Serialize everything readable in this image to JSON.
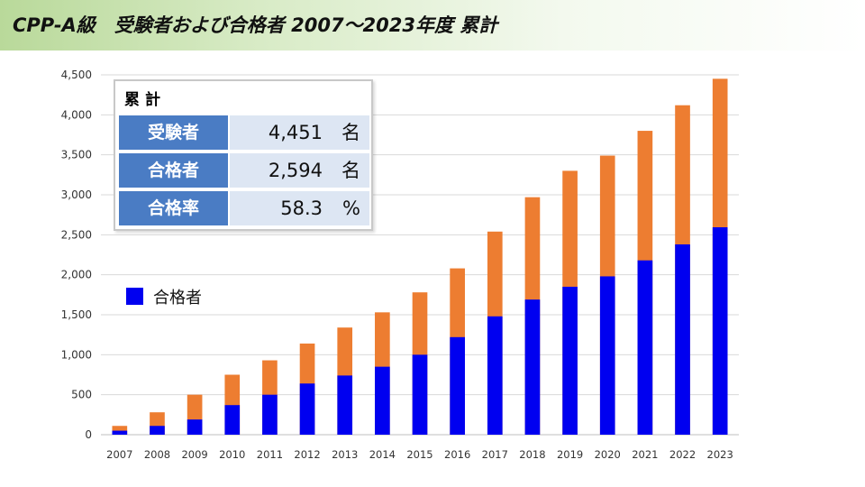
{
  "title": "CPP-A級　受験者および合格者  2007～2023年度  累計",
  "colors": {
    "passed": "#0000f0",
    "examinees": "#ed7d31",
    "label_bg": "#4a7cc4",
    "value_bg": "#dde6f3"
  },
  "summary": {
    "title": "累計",
    "rows": [
      {
        "label": "受験者",
        "value": "4,451",
        "unit": "名"
      },
      {
        "label": "合格者",
        "value": "2,594",
        "unit": "名"
      },
      {
        "label": "合格率",
        "value": "58.3",
        "unit": "%"
      }
    ]
  },
  "legend": {
    "label": "合格者"
  },
  "chart_data": {
    "type": "bar",
    "title": "",
    "xlabel": "",
    "ylabel": "",
    "ylim": [
      0,
      4500
    ],
    "yticks": [
      0,
      500,
      1000,
      1500,
      2000,
      2500,
      3000,
      3500,
      4000,
      4500
    ],
    "ytick_labels": [
      "0",
      "500",
      "1,000",
      "1,500",
      "2,000",
      "2,500",
      "3,000",
      "3,500",
      "4,000",
      "4,500"
    ],
    "grid": true,
    "categories": [
      "2007",
      "2008",
      "2009",
      "2010",
      "2011",
      "2012",
      "2013",
      "2014",
      "2015",
      "2016",
      "2017",
      "2018",
      "2019",
      "2020",
      "2021",
      "2022",
      "2023"
    ],
    "series": [
      {
        "name": "合格者",
        "color": "#0000f0",
        "values": [
          50,
          110,
          190,
          370,
          500,
          640,
          740,
          850,
          1000,
          1220,
          1480,
          1690,
          1850,
          1980,
          2180,
          2380,
          2594
        ]
      },
      {
        "name": "",
        "color": "#ed7d31",
        "values": [
          110,
          280,
          500,
          750,
          930,
          1140,
          1340,
          1530,
          1780,
          2080,
          2540,
          2970,
          3300,
          3490,
          3800,
          4120,
          4451
        ]
      }
    ],
    "legend": "left"
  }
}
